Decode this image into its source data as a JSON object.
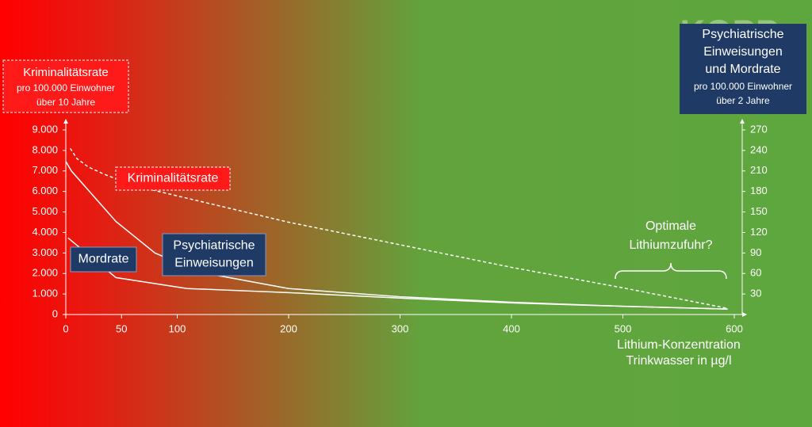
{
  "chart_data": {
    "type": "line",
    "watermark": "KOPP",
    "y_title": [
      "Kriminalitätsrate",
      "pro 100.000 Einwohner",
      "über 10 Jahre"
    ],
    "y2_title": [
      "Psychiatrische",
      "Einweisungen",
      "und Mordrate",
      "pro 100.000 Einwohner",
      "über 2 Jahre"
    ],
    "x_title": [
      "Lithium-Konzentration",
      "Trinkwasser in µg/l"
    ],
    "annotation": [
      "Optimale",
      "Lithiumzufuhr?"
    ],
    "xlim": [
      0,
      600
    ],
    "xticks": [
      0,
      50,
      100,
      200,
      300,
      400,
      500,
      600
    ],
    "ylim": [
      0,
      9000
    ],
    "yticks": [
      0,
      {
        "value": 1000,
        "label": "1.000"
      },
      {
        "value": 2000,
        "label": "2.000"
      },
      {
        "value": 3000,
        "label": "3.000"
      },
      {
        "value": 4000,
        "label": "4.000"
      },
      {
        "value": 5000,
        "label": "5.000"
      },
      {
        "value": 6000,
        "label": "6.000"
      },
      {
        "value": 7000,
        "label": "7.000"
      },
      {
        "value": 8000,
        "label": "8.000"
      },
      {
        "value": 9000,
        "label": "9.000"
      }
    ],
    "y2lim": [
      0,
      270
    ],
    "y2ticks": [
      30,
      60,
      90,
      120,
      150,
      180,
      210,
      240,
      270
    ],
    "series": [
      {
        "name": "Kriminalitätsrate",
        "color": "#ffffff",
        "dashed": true,
        "box_color": "#ff1a1a",
        "x": [
          4,
          10,
          20,
          34,
          60,
          122,
          200,
          300,
          400,
          500,
          594
        ],
        "values": [
          8100,
          7600,
          7200,
          6850,
          6300,
          5500,
          4500,
          3400,
          2300,
          1300,
          300
        ]
      },
      {
        "name": "Psychiatrische Einweisungen",
        "color": "#ffffff",
        "axis": "y2",
        "box_color": "#1f3a64",
        "x": [
          0,
          5,
          45,
          80,
          120,
          200,
          300,
          400,
          500,
          594
        ],
        "values": [
          224,
          210,
          136,
          90,
          62,
          38,
          26,
          18,
          12,
          8
        ]
      },
      {
        "name": "Mordrate",
        "color": "#ffffff",
        "axis": "y2",
        "box_color": "#1f3a64",
        "x": [
          2,
          45,
          109,
          200,
          300,
          400,
          500,
          594
        ],
        "values": [
          112,
          54,
          38,
          32,
          24,
          17,
          12,
          8
        ]
      }
    ]
  }
}
